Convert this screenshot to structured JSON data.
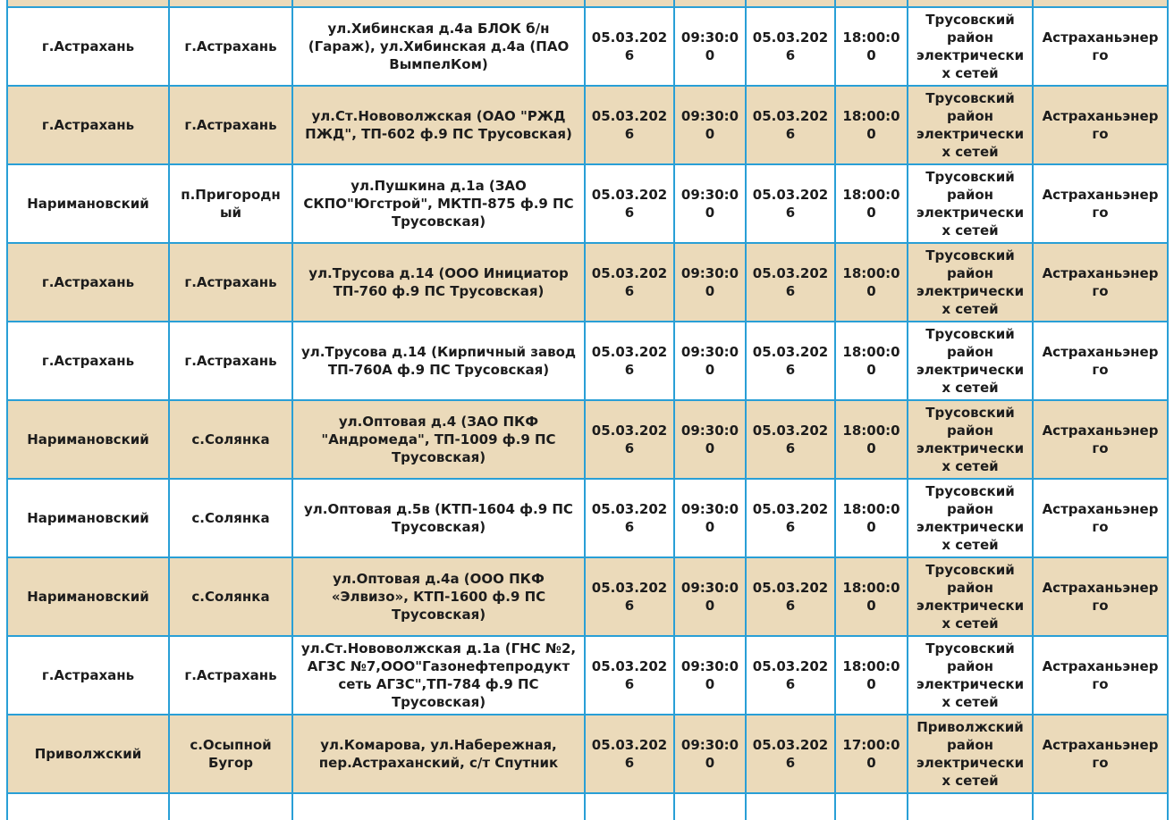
{
  "colors": {
    "border": "#299fd6",
    "row_shaded": "#ebdaba",
    "row_plain": "#ffffff",
    "text": "#1c1c1c"
  },
  "table": {
    "rows": [
      {
        "district": "г.Астрахань",
        "locality": "г.Астрахань",
        "address": "ул.Хибинская д.4а БЛОК б/н (Гараж), ул.Хибинская д.4а (ПАО ВымпелКом)",
        "start_date": "05.03.2026",
        "start_time": "09:30:00",
        "end_date": "05.03.2026",
        "end_time": "18:00:00",
        "network_region": "Трусовский район электрических сетей",
        "company": "Астраханьэнерго"
      },
      {
        "district": "г.Астрахань",
        "locality": "г.Астрахань",
        "address": "ул.Ст.Нововолжская (ОАО \"РЖД ПЖД\", ТП-602 ф.9 ПС Трусовская)",
        "start_date": "05.03.2026",
        "start_time": "09:30:00",
        "end_date": "05.03.2026",
        "end_time": "18:00:00",
        "network_region": "Трусовский район электрических сетей",
        "company": "Астраханьэнерго"
      },
      {
        "district": "Наримановский",
        "locality": "п.Пригородный",
        "address": "ул.Пушкина д.1а (ЗАО СКПО\"Югстрой\", МКТП-875 ф.9 ПС Трусовская)",
        "start_date": "05.03.2026",
        "start_time": "09:30:00",
        "end_date": "05.03.2026",
        "end_time": "18:00:00",
        "network_region": "Трусовский район электрических сетей",
        "company": "Астраханьэнерго"
      },
      {
        "district": "г.Астрахань",
        "locality": "г.Астрахань",
        "address": "ул.Трусова д.14 (ООО Инициатор ТП-760 ф.9 ПС Трусовская)",
        "start_date": "05.03.2026",
        "start_time": "09:30:00",
        "end_date": "05.03.2026",
        "end_time": "18:00:00",
        "network_region": "Трусовский район электрических сетей",
        "company": "Астраханьэнерго"
      },
      {
        "district": "г.Астрахань",
        "locality": "г.Астрахань",
        "address": "ул.Трусова д.14 (Кирпичный завод ТП-760А ф.9 ПС Трусовская)",
        "start_date": "05.03.2026",
        "start_time": "09:30:00",
        "end_date": "05.03.2026",
        "end_time": "18:00:00",
        "network_region": "Трусовский район электрических сетей",
        "company": "Астраханьэнерго"
      },
      {
        "district": "Наримановский",
        "locality": "с.Солянка",
        "address": "ул.Оптовая д.4 (ЗАО ПКФ \"Андромеда\", ТП-1009 ф.9 ПС Трусовская)",
        "start_date": "05.03.2026",
        "start_time": "09:30:00",
        "end_date": "05.03.2026",
        "end_time": "18:00:00",
        "network_region": "Трусовский район электрических сетей",
        "company": "Астраханьэнерго"
      },
      {
        "district": "Наримановский",
        "locality": "с.Солянка",
        "address": "ул.Оптовая д.5в (КТП-1604 ф.9 ПС Трусовская)",
        "start_date": "05.03.2026",
        "start_time": "09:30:00",
        "end_date": "05.03.2026",
        "end_time": "18:00:00",
        "network_region": "Трусовский район электрических сетей",
        "company": "Астраханьэнерго"
      },
      {
        "district": "Наримановский",
        "locality": "с.Солянка",
        "address": "ул.Оптовая д.4а (ООО ПКФ «Элвизо», КТП-1600 ф.9 ПС Трусовская)",
        "start_date": "05.03.2026",
        "start_time": "09:30:00",
        "end_date": "05.03.2026",
        "end_time": "18:00:00",
        "network_region": "Трусовский район электрических сетей",
        "company": "Астраханьэнерго"
      },
      {
        "district": "г.Астрахань",
        "locality": "г.Астрахань",
        "address": "ул.Ст.Нововолжская д.1а (ГНС №2, АГЗС №7,ООО\"Газонефтепродукт сеть АГЗС\",ТП-784 ф.9 ПС Трусовская)",
        "start_date": "05.03.2026",
        "start_time": "09:30:00",
        "end_date": "05.03.2026",
        "end_time": "18:00:00",
        "network_region": "Трусовский район электрических сетей",
        "company": "Астраханьэнерго"
      },
      {
        "district": "Приволжский",
        "locality": "с.Осыпной Бугор",
        "address": "ул.Комарова, ул.Набережная, пер.Астраханский, с/т Спутник",
        "start_date": "05.03.2026",
        "start_time": "09:30:00",
        "end_date": "05.03.2026",
        "end_time": "17:00:00",
        "network_region": "Приволжский район электрических сетей",
        "company": "Астраханьэнерго"
      }
    ]
  }
}
